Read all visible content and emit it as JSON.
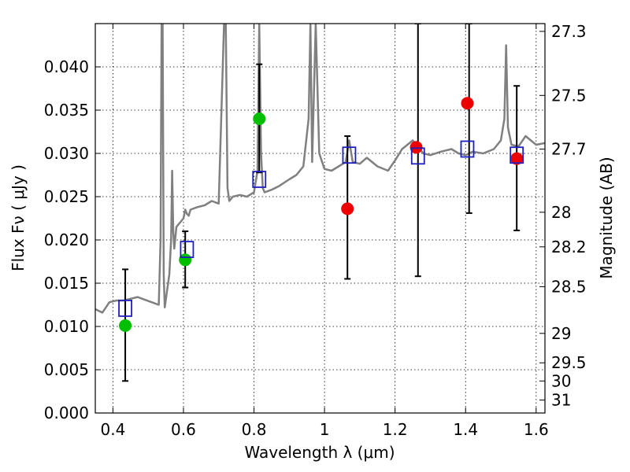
{
  "chart_data": {
    "type": "scatter",
    "xlabel": "Wavelength  λ (μm)",
    "ylabel": "Flux  Fν  ( μJy )",
    "ylabel_right": "Magnitude (AB)",
    "xlim": [
      0.35,
      1.625
    ],
    "ylim": [
      0.0,
      0.045
    ],
    "grid": true,
    "x_ticks": [
      0.4,
      0.6,
      0.8,
      1.0,
      1.2,
      1.4,
      1.6
    ],
    "x_tick_labels": [
      "0.4",
      "0.6",
      "0.8",
      "1",
      "1.2",
      "1.4",
      "1.6"
    ],
    "y_ticks": [
      0.0,
      0.005,
      0.01,
      0.015,
      0.02,
      0.025,
      0.03,
      0.035,
      0.04
    ],
    "y_tick_labels": [
      "0.000",
      "0.005",
      "0.010",
      "0.015",
      "0.020",
      "0.025",
      "0.030",
      "0.035",
      "0.040"
    ],
    "mag_ticks": [
      {
        "label": "27.3",
        "flux": 0.0441
      },
      {
        "label": "27.5",
        "flux": 0.0367
      },
      {
        "label": "27.7",
        "flux": 0.0305
      },
      {
        "label": "28",
        "flux": 0.0232
      },
      {
        "label": "28.2",
        "flux": 0.0192
      },
      {
        "label": "28.5",
        "flux": 0.0146
      },
      {
        "label": "29",
        "flux": 0.0092
      },
      {
        "label": "29.5",
        "flux": 0.0058
      },
      {
        "label": "30",
        "flux": 0.0037
      },
      {
        "label": "31",
        "flux": 0.0015
      }
    ],
    "series": [
      {
        "type": "line",
        "color": "#808080",
        "x": [
          0.35,
          0.37,
          0.39,
          0.41,
          0.43,
          0.45,
          0.47,
          0.49,
          0.51,
          0.53,
          0.535,
          0.538,
          0.541,
          0.544,
          0.547,
          0.56,
          0.565,
          0.568,
          0.571,
          0.574,
          0.58,
          0.59,
          0.6,
          0.605,
          0.61,
          0.615,
          0.62,
          0.64,
          0.66,
          0.68,
          0.7,
          0.715,
          0.72,
          0.725,
          0.73,
          0.74,
          0.76,
          0.78,
          0.8,
          0.81,
          0.815,
          0.82,
          0.825,
          0.83,
          0.85,
          0.87,
          0.9,
          0.92,
          0.94,
          0.955,
          0.96,
          0.965,
          0.975,
          0.985,
          1.0,
          1.02,
          1.04,
          1.06,
          1.07,
          1.08,
          1.1,
          1.12,
          1.15,
          1.18,
          1.2,
          1.22,
          1.25,
          1.28,
          1.3,
          1.33,
          1.36,
          1.38,
          1.4,
          1.42,
          1.45,
          1.48,
          1.5,
          1.51,
          1.515,
          1.52,
          1.53,
          1.55,
          1.57,
          1.6,
          1.625
        ],
        "y": [
          0.012,
          0.0116,
          0.0128,
          0.013,
          0.013,
          0.0132,
          0.0134,
          0.0131,
          0.0128,
          0.0125,
          0.02,
          0.045,
          0.045,
          0.016,
          0.0122,
          0.016,
          0.02,
          0.028,
          0.021,
          0.019,
          0.0215,
          0.022,
          0.0225,
          0.0235,
          0.023,
          0.0228,
          0.0235,
          0.0238,
          0.024,
          0.0245,
          0.0242,
          0.045,
          0.045,
          0.026,
          0.0245,
          0.025,
          0.0252,
          0.025,
          0.0255,
          0.028,
          0.045,
          0.03,
          0.026,
          0.0255,
          0.0258,
          0.0262,
          0.027,
          0.0275,
          0.0285,
          0.034,
          0.045,
          0.029,
          0.045,
          0.03,
          0.0282,
          0.028,
          0.0285,
          0.029,
          0.0315,
          0.029,
          0.0288,
          0.0295,
          0.0285,
          0.028,
          0.0292,
          0.0305,
          0.0315,
          0.03,
          0.0298,
          0.0302,
          0.0305,
          0.03,
          0.0298,
          0.0302,
          0.03,
          0.0305,
          0.0315,
          0.034,
          0.0425,
          0.033,
          0.031,
          0.0308,
          0.032,
          0.031,
          0.0312
        ]
      },
      {
        "type": "errorbar",
        "color": "#000000",
        "x": [
          0.435,
          0.605,
          0.815,
          1.065,
          1.265,
          1.41,
          1.545
        ],
        "ylow": [
          0.0037,
          0.0145,
          0.0278,
          0.0155,
          0.0158,
          0.0231,
          0.0211
        ],
        "yhigh": [
          0.0166,
          0.021,
          0.0403,
          0.032,
          0.045,
          0.045,
          0.0378
        ]
      },
      {
        "type": "scatter",
        "marker": "circle",
        "color": "#00bf00",
        "x": [
          0.435,
          0.605,
          0.815
        ],
        "y": [
          0.0101,
          0.0177,
          0.034
        ]
      },
      {
        "type": "scatter",
        "marker": "circle",
        "color": "#ee0000",
        "x": [
          1.065,
          1.26,
          1.405,
          1.545
        ],
        "y": [
          0.0236,
          0.0307,
          0.0358,
          0.0294
        ]
      },
      {
        "type": "scatter",
        "marker": "open-square",
        "color": "#1f1fbf",
        "x": [
          0.435,
          0.61,
          0.815,
          1.07,
          1.265,
          1.405,
          1.545
        ],
        "y": [
          0.0121,
          0.0189,
          0.027,
          0.0298,
          0.0297,
          0.0305,
          0.0298
        ]
      }
    ]
  }
}
